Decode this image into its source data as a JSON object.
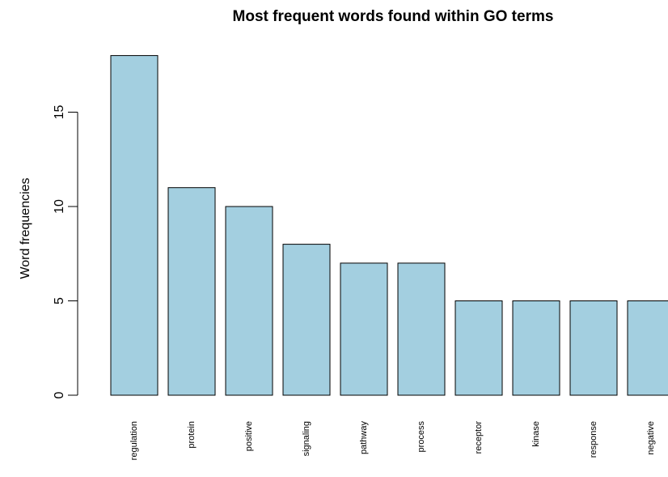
{
  "chart_data": {
    "type": "bar",
    "title": "Most frequent words found within GO terms",
    "xlabel": "",
    "ylabel": "Word frequencies",
    "categories": [
      "regulation",
      "protein",
      "positive",
      "signaling",
      "pathway",
      "process",
      "receptor",
      "kinase",
      "response",
      "negative"
    ],
    "values": [
      18,
      11,
      10,
      8,
      7,
      7,
      5,
      5,
      5,
      5
    ],
    "ylim": [
      0,
      18
    ],
    "yticks": [
      "0",
      "5",
      "10",
      "15"
    ],
    "grid": false,
    "legend": "none",
    "bar_color": "#A3CFE0",
    "bar_edge_color": "#000000"
  }
}
